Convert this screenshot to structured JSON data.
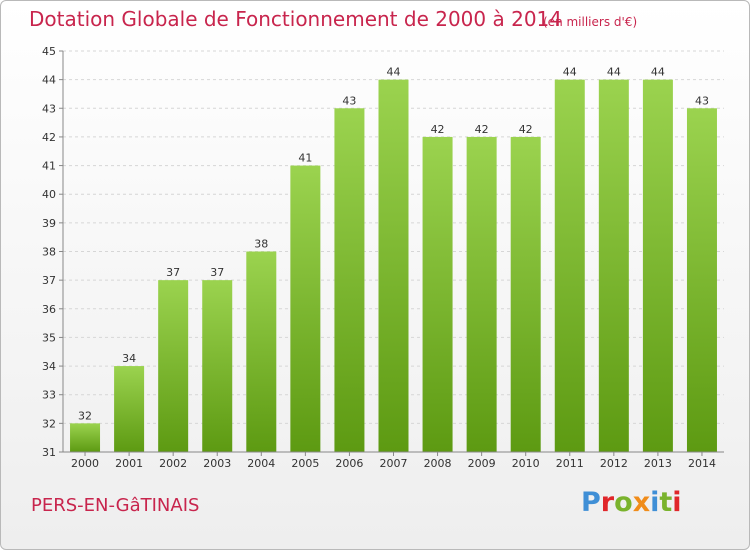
{
  "title": "Dotation Globale de Fonctionnement de 2000 à 2014",
  "unit_note": "(en milliers d'€)",
  "place": "PERS-EN-GâTINAIS",
  "logo": {
    "letters": [
      "P",
      "r",
      "o",
      "x",
      "i",
      "t",
      "i"
    ],
    "colors": [
      "#3f8fd6",
      "#e0262a",
      "#7ab32d",
      "#f08c1a",
      "#3f8fd6",
      "#7ab32d",
      "#e0262a"
    ]
  },
  "colors": {
    "bar_top": "#9bd34f",
    "bar_bottom": "#5d9a12",
    "title": "#c8254d"
  },
  "chart_data": {
    "type": "bar",
    "categories": [
      "2000",
      "2001",
      "2002",
      "2003",
      "2004",
      "2005",
      "2006",
      "2007",
      "2008",
      "2009",
      "2010",
      "2011",
      "2012",
      "2013",
      "2014"
    ],
    "values": [
      32,
      34,
      37,
      37,
      38,
      41,
      43,
      44,
      42,
      42,
      42,
      44,
      44,
      44,
      43
    ],
    "ylim": [
      31,
      45
    ],
    "yticks": [
      31,
      32,
      33,
      34,
      35,
      36,
      37,
      38,
      39,
      40,
      41,
      42,
      43,
      44,
      45
    ],
    "grid": true,
    "legend": "none"
  }
}
